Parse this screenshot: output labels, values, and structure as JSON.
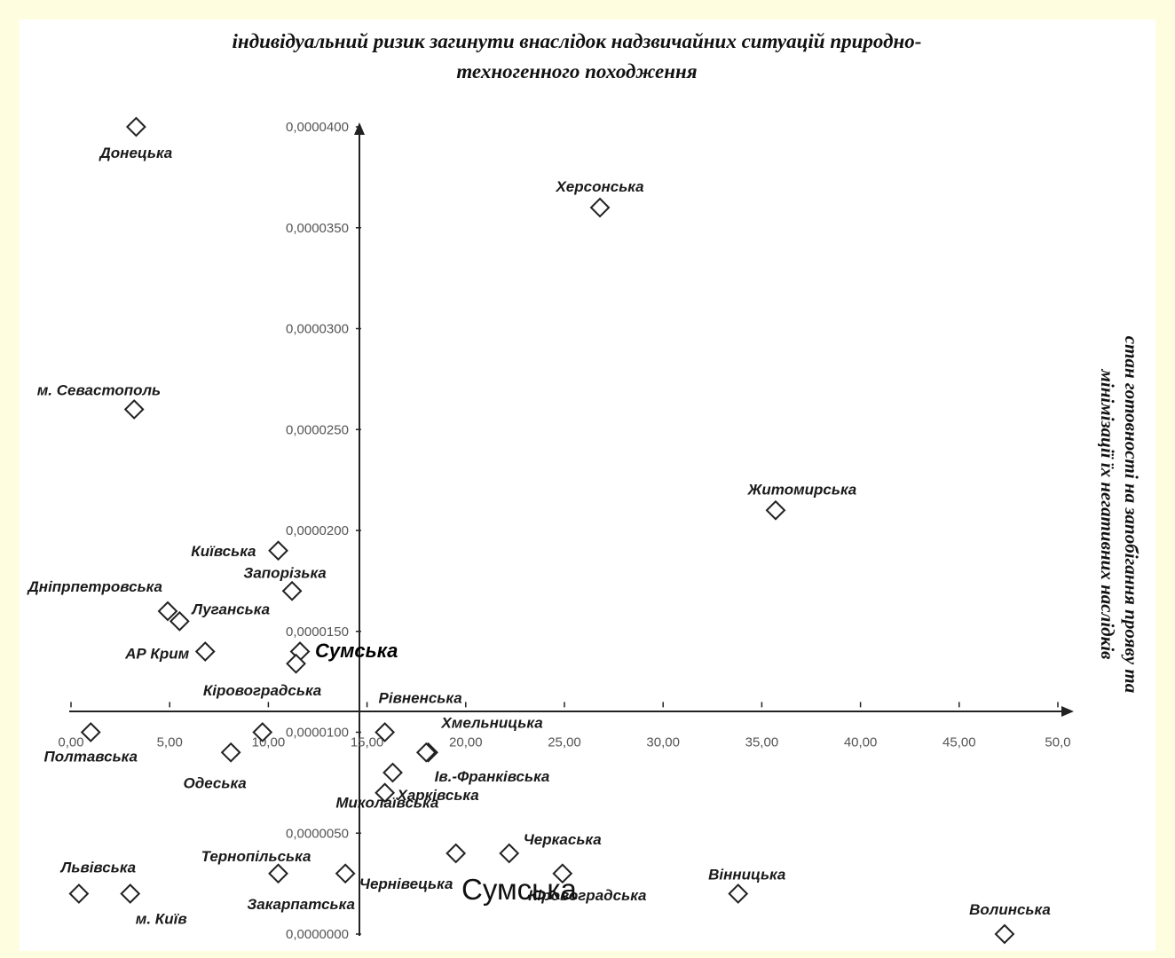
{
  "header": {
    "title_line1": "індивідуальний ризик загинути внаслідок надзвичайних ситуацій природно-",
    "title_line2": "техногенного походження",
    "right_line1": "стан готовності на запобігання прояву та",
    "right_line2": "мінімізації їх негативних наслідків"
  },
  "overlay_text": {
    "mid": "Сумська",
    "bottom": "Сумська"
  },
  "colors": {
    "background": "#fffde0",
    "panel": "#ffffff",
    "axis": "#222222",
    "marker": "#222222"
  },
  "chart_data": {
    "type": "scatter",
    "x_ticks": [
      "0,00",
      "5,00",
      "10,00",
      "15,00",
      "20,00",
      "25,00",
      "30,00",
      "35,00",
      "40,00",
      "45,00",
      "50,0"
    ],
    "y_ticks": [
      "0,0000000",
      "0,0000050",
      "0,0000100",
      "0,0000150",
      "0,0000200",
      "0,0000250",
      "0,0000300",
      "0,0000350",
      "0,0000400"
    ],
    "xlim": [
      0,
      50
    ],
    "ylim": [
      0,
      4e-05
    ],
    "x_axis_crosses_y_at": 1.15e-05,
    "y_axis_crosses_x_at": 14.7,
    "marker": "diamond-open",
    "grid": false,
    "points": [
      {
        "label": "Донецька",
        "x": 3.3,
        "y": 4e-05
      },
      {
        "label": "Херсонська",
        "x": 26.8,
        "y": 3.6e-05
      },
      {
        "label": "м. Севастополь",
        "x": 3.2,
        "y": 2.6e-05
      },
      {
        "label": "Житомирська",
        "x": 35.7,
        "y": 2.1e-05
      },
      {
        "label": "Київська",
        "x": 10.5,
        "y": 1.9e-05
      },
      {
        "label": "Запорізька",
        "x": 11.2,
        "y": 1.7e-05
      },
      {
        "label": "Дніпрпетровська",
        "x": 4.9,
        "y": 1.6e-05
      },
      {
        "label": "Луганська",
        "x": 5.5,
        "y": 1.55e-05
      },
      {
        "label": "АР Крим",
        "x": 6.8,
        "y": 1.4e-05
      },
      {
        "label": "Сумська",
        "x": 11.6,
        "y": 1.4e-05
      },
      {
        "label": "Кіровоградська",
        "x": 11.4,
        "y": 1.34e-05
      },
      {
        "label": "Рівненська",
        "x": 15.9,
        "y": 1e-05
      },
      {
        "label": "Хмельницька",
        "x": 18.1,
        "y": 9e-06
      },
      {
        "label": "Полтавська",
        "x": 1.0,
        "y": 1e-05
      },
      {
        "label": "Одеська",
        "x": 8.1,
        "y": 9e-06
      },
      {
        "label": "Ів.-Франківська",
        "x": 16.3,
        "y": 8e-06
      },
      {
        "label": "Харківська",
        "x": 15.9,
        "y": 7e-06
      },
      {
        "label": "Миколаївська",
        "x": 18.0,
        "y": 9e-06
      },
      {
        "label": "Черкаська",
        "x": 22.2,
        "y": 4e-06
      },
      {
        "label": "Чернівецька",
        "x": 19.5,
        "y": 4e-06
      },
      {
        "label": "Кіровоградська",
        "x": 24.9,
        "y": 3e-06
      },
      {
        "label": "Тернопільська",
        "x": 10.5,
        "y": 3e-06
      },
      {
        "label": "Закарпатська",
        "x": 13.9,
        "y": 3e-06
      },
      {
        "label": "Вінницька",
        "x": 33.8,
        "y": 2e-06
      },
      {
        "label": "Волинська",
        "x": 47.3,
        "y": 0.0
      },
      {
        "label": "Львівська",
        "x": 0.4,
        "y": 2e-06
      },
      {
        "label": "м. Київ",
        "x": 3.0,
        "y": 2e-06
      },
      {
        "label": "",
        "x": 9.7,
        "y": 1e-05
      }
    ]
  }
}
